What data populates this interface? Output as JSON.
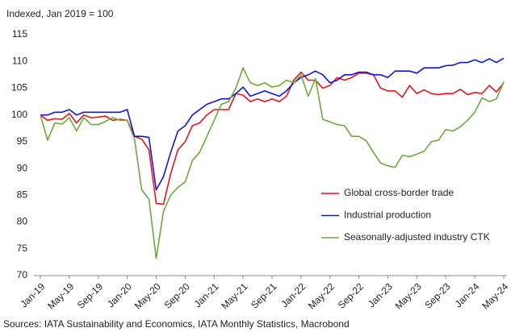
{
  "chart_data": {
    "type": "line",
    "title": "Indexed, Jan 2019 = 100",
    "footnote": "Sources: IATA Sustainability and Economics, IATA Monthly Statistics, Macrobond",
    "categories": [
      "Jan-19",
      null,
      null,
      null,
      "May-19",
      null,
      null,
      null,
      "Sep-19",
      null,
      null,
      null,
      "Jan-20",
      null,
      null,
      null,
      "May-20",
      null,
      null,
      null,
      "Sep-20",
      null,
      null,
      null,
      "Jan-21",
      null,
      null,
      null,
      "May-21",
      null,
      null,
      null,
      "Sep-21",
      null,
      null,
      null,
      "Jan-22",
      null,
      null,
      null,
      "May-22",
      null,
      null,
      null,
      "Sep-22",
      null,
      null,
      null,
      "Jan-23",
      null,
      null,
      null,
      "May-23",
      null,
      null,
      null,
      "Sep-23",
      null,
      null,
      null,
      "Jan-24",
      null,
      null,
      null,
      "May-24"
    ],
    "ylim": [
      70,
      115
    ],
    "yticks": [
      70,
      75,
      80,
      85,
      90,
      95,
      100,
      105,
      110,
      115
    ],
    "grid": false,
    "legend": "lower right",
    "series": [
      {
        "name": "Global cross-border trade",
        "color": "#e8141c",
        "values": [
          100,
          99,
          99.3,
          99.2,
          100.3,
          98.5,
          100,
          99.5,
          99.6,
          99.8,
          99,
          99.2,
          99,
          96,
          95.5,
          93.5,
          83.5,
          83.3,
          89,
          93.5,
          95,
          98,
          98.5,
          100,
          101,
          101,
          101,
          104,
          103.7,
          102.5,
          103,
          102.5,
          103,
          102.5,
          103.5,
          106.5,
          108,
          106.5,
          106.5,
          105,
          105.5,
          107,
          106.5,
          107,
          107.8,
          107.8,
          107.5,
          105,
          104.5,
          104.5,
          103.3,
          105.5,
          104,
          104.7,
          104,
          103.8,
          104,
          104,
          104.8,
          103.8,
          104.2,
          104,
          105.5,
          104.3,
          106
        ]
      },
      {
        "name": "Industrial production",
        "color": "#1414d2",
        "values": [
          100,
          100,
          100.5,
          100.5,
          101,
          100,
          100.5,
          100.5,
          100.5,
          100.5,
          100.5,
          100.5,
          101,
          96,
          96,
          95.8,
          86,
          88.5,
          93,
          97,
          98,
          100,
          101,
          102,
          102.5,
          103,
          103,
          104,
          105.2,
          103.5,
          104,
          104.5,
          104,
          103.5,
          104.5,
          106,
          107,
          107.5,
          108.2,
          107.5,
          106,
          106.5,
          107.5,
          107.5,
          108,
          108,
          107.5,
          107.5,
          107,
          108.2,
          108.2,
          108.2,
          107.8,
          108.8,
          108.8,
          108.8,
          109.2,
          109.3,
          109.8,
          109.8,
          110.3,
          109.8,
          110.5,
          109.8,
          110.6
        ]
      },
      {
        "name": "Seasonally-adjusted industry CTK",
        "color": "#6aaa3a",
        "values": [
          100,
          95.3,
          98.5,
          98.3,
          99.5,
          97,
          99.5,
          98.2,
          98.2,
          98.8,
          99.5,
          99,
          99,
          95.5,
          86,
          84.3,
          73.2,
          82,
          85,
          86.5,
          87.5,
          91.5,
          93,
          96,
          99,
          102,
          102.5,
          105,
          108.8,
          106,
          105.5,
          106,
          105.2,
          105.5,
          106.5,
          106,
          107.5,
          103.5,
          106.8,
          99.2,
          98.7,
          98.2,
          98,
          96,
          96,
          95.2,
          93,
          91,
          90.5,
          90.2,
          92.5,
          92.2,
          92.7,
          93.2,
          95,
          95.3,
          97.3,
          97,
          97.8,
          99,
          100.5,
          103.2,
          102.5,
          103,
          106.2
        ]
      }
    ]
  }
}
